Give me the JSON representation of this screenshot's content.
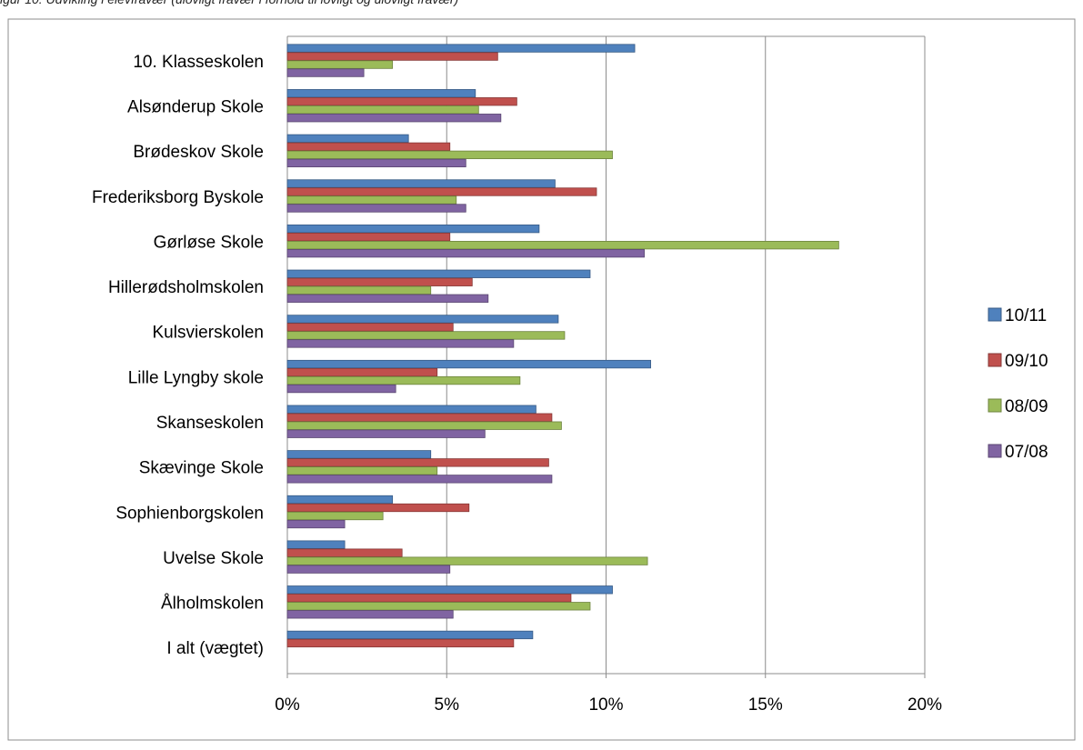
{
  "caption_partial": "igur 10: Udvikling i elevfravær (ulovligt fravær i forhold til lovligt og ulovligt fravær)",
  "chart_data": {
    "type": "bar",
    "orientation": "horizontal",
    "title": "",
    "xlabel": "",
    "ylabel": "",
    "xlim": [
      0,
      0.2
    ],
    "x_ticks": [
      "0%",
      "5%",
      "10%",
      "15%",
      "20%"
    ],
    "grid": true,
    "legend_position": "right",
    "categories": [
      "10. Klasseskolen",
      "Alsønderup Skole",
      "Brødeskov Skole",
      "Frederiksborg Byskole",
      "Gørløse Skole",
      "Hillerødsholmskolen",
      "Kulsvierskolen",
      "Lille Lyngby skole",
      "Skanseskolen",
      "Skævinge Skole",
      "Sophienborgskolen",
      "Uvelse Skole",
      "Ålholmskolen",
      "I alt (vægtet)"
    ],
    "series": [
      {
        "name": "10/11",
        "color": "#4f81bd",
        "values": [
          0.109,
          0.059,
          0.038,
          0.084,
          0.079,
          0.095,
          0.085,
          0.114,
          0.078,
          0.045,
          0.033,
          0.018,
          0.102,
          0.077
        ]
      },
      {
        "name": "09/10",
        "color": "#c0504d",
        "values": [
          0.066,
          0.072,
          0.051,
          0.097,
          0.051,
          0.058,
          0.052,
          0.047,
          0.083,
          0.082,
          0.057,
          0.036,
          0.089,
          0.071
        ]
      },
      {
        "name": "08/09",
        "color": "#9bbb59",
        "values": [
          0.033,
          0.06,
          0.102,
          0.053,
          0.173,
          0.045,
          0.087,
          0.073,
          0.086,
          0.047,
          0.03,
          0.113,
          0.095,
          null
        ]
      },
      {
        "name": "07/08",
        "color": "#8064a2",
        "values": [
          0.024,
          0.067,
          0.056,
          0.056,
          0.112,
          0.063,
          0.071,
          0.034,
          0.062,
          0.083,
          0.018,
          0.051,
          0.052,
          null
        ]
      }
    ]
  }
}
